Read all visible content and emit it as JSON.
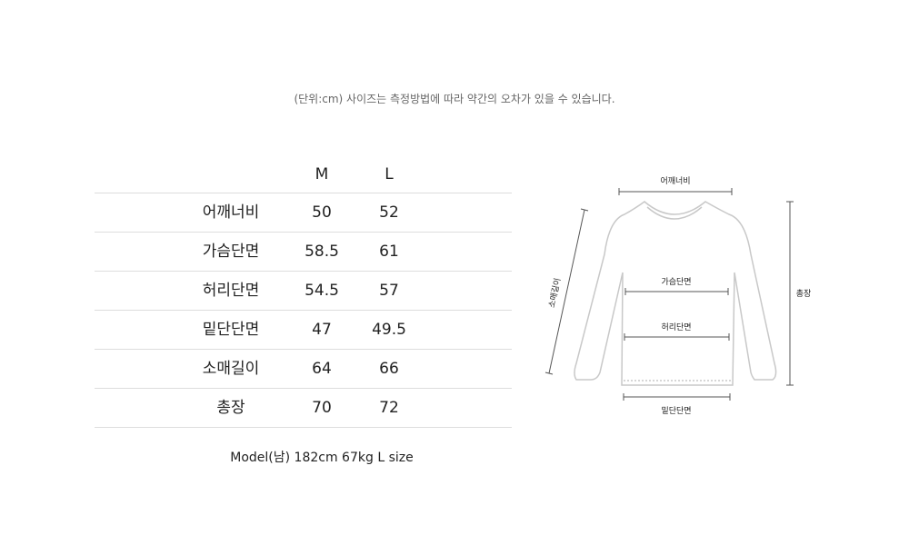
{
  "notice": "(단위:cm) 사이즈는 측정방법에 따라 약간의 오차가 있을 수 있습니다.",
  "size_table": {
    "columns": [
      "",
      "M",
      "L"
    ],
    "rows": [
      {
        "label": "어깨너비",
        "M": "50",
        "L": "52"
      },
      {
        "label": "가슴단면",
        "M": "58.5",
        "L": "61"
      },
      {
        "label": "허리단면",
        "M": "54.5",
        "L": "57"
      },
      {
        "label": "밑단단면",
        "M": "47",
        "L": "49.5"
      },
      {
        "label": "소매길이",
        "M": "64",
        "L": "66"
      },
      {
        "label": "총장",
        "M": "70",
        "L": "72"
      }
    ]
  },
  "model_info": "Model(남) 182cm 67kg L size",
  "diagram": {
    "shoulder": "어깨너비",
    "chest": "가슴단면",
    "waist": "허리단면",
    "hem": "밑단단면",
    "sleeve": "소매길이",
    "length": "총장",
    "outline_color": "#c8c8c8",
    "measure_color": "#555555"
  }
}
